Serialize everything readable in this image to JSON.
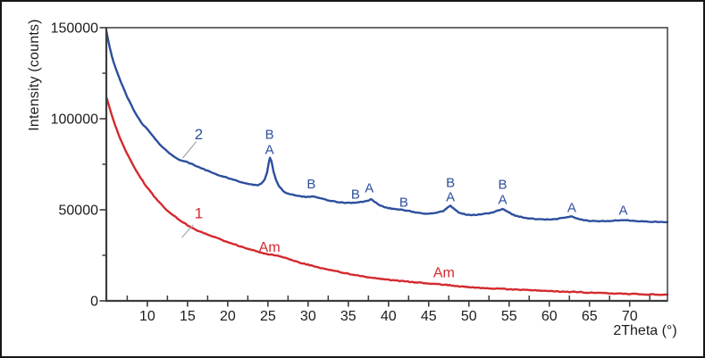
{
  "figure": {
    "description": "XRD diffractogram with two traces: trace 2 (blue, crystalline anatase A / brookite B peaks) and trace 1 (red, amorphous)",
    "background_color": "#ffffff",
    "border_color": "#161616",
    "frame_color": "#3c3c3c"
  },
  "chart_data": {
    "type": "line",
    "title": "",
    "xlabel": "2Theta (°)",
    "ylabel": "Intensity (counts)",
    "xlim": [
      4.9,
      74.7
    ],
    "ylim": [
      0,
      150000
    ],
    "grid": false,
    "legend": "none",
    "x_major_ticks": [
      10,
      15,
      20,
      25,
      30,
      35,
      40,
      45,
      50,
      55,
      60,
      65,
      70
    ],
    "x_minor_ticks": [
      7.5,
      12.5,
      17.5,
      22.5,
      27.5,
      32.5,
      37.5,
      42.5,
      47.5,
      52.5,
      57.5,
      62.5,
      67.5,
      72.5
    ],
    "y_major_ticks": [
      0,
      50000,
      100000,
      150000
    ],
    "y_minor_ticks": [
      25000,
      75000,
      125000
    ],
    "series": [
      {
        "name": "2",
        "color": "#2d4f9e",
        "points": [
          [
            4.93,
            147500
          ],
          [
            5.0,
            146000
          ],
          [
            5.3,
            139500
          ],
          [
            5.6,
            134000
          ],
          [
            6.0,
            128500
          ],
          [
            6.5,
            122500
          ],
          [
            7.0,
            117000
          ],
          [
            7.5,
            112000
          ],
          [
            8.0,
            107500
          ],
          [
            8.5,
            103300
          ],
          [
            9.0,
            99500
          ],
          [
            9.5,
            96500
          ],
          [
            10.0,
            94500
          ],
          [
            10.5,
            91500
          ],
          [
            11.0,
            88800
          ],
          [
            11.5,
            86300
          ],
          [
            12.0,
            84000
          ],
          [
            12.5,
            82000
          ],
          [
            13.0,
            80100
          ],
          [
            13.5,
            78600
          ],
          [
            14.0,
            77500
          ],
          [
            14.5,
            76800
          ],
          [
            15.0,
            76100
          ],
          [
            15.5,
            75200
          ],
          [
            16.0,
            74200
          ],
          [
            16.5,
            73200
          ],
          [
            17.0,
            72300
          ],
          [
            17.5,
            71400
          ],
          [
            18.0,
            70500
          ],
          [
            18.5,
            69700
          ],
          [
            19.0,
            68900
          ],
          [
            19.5,
            68200
          ],
          [
            20.0,
            67500
          ],
          [
            20.5,
            66800
          ],
          [
            21.0,
            66100
          ],
          [
            21.5,
            65500
          ],
          [
            22.0,
            64900
          ],
          [
            22.5,
            64400
          ],
          [
            23.0,
            63900
          ],
          [
            23.4,
            63600
          ],
          [
            23.8,
            63700
          ],
          [
            24.2,
            64500
          ],
          [
            24.6,
            66500
          ],
          [
            24.9,
            70500
          ],
          [
            25.1,
            75500
          ],
          [
            25.25,
            78500
          ],
          [
            25.45,
            76500
          ],
          [
            25.7,
            71000
          ],
          [
            26.0,
            66500
          ],
          [
            26.4,
            62800
          ],
          [
            26.9,
            60200
          ],
          [
            27.5,
            58800
          ],
          [
            28.2,
            58000
          ],
          [
            29.0,
            57400
          ],
          [
            29.7,
            57100
          ],
          [
            30.3,
            57100
          ],
          [
            30.8,
            57300
          ],
          [
            31.3,
            56600
          ],
          [
            32.0,
            55700
          ],
          [
            32.8,
            54900
          ],
          [
            33.6,
            54300
          ],
          [
            34.4,
            53900
          ],
          [
            35.2,
            53800
          ],
          [
            36.0,
            54100
          ],
          [
            36.6,
            54300
          ],
          [
            37.2,
            54700
          ],
          [
            37.8,
            55700
          ],
          [
            38.2,
            54600
          ],
          [
            38.8,
            52800
          ],
          [
            39.5,
            51500
          ],
          [
            40.2,
            50800
          ],
          [
            41.0,
            50200
          ],
          [
            41.8,
            50000
          ],
          [
            42.5,
            49400
          ],
          [
            43.3,
            48600
          ],
          [
            44.2,
            47900
          ],
          [
            45.0,
            47900
          ],
          [
            46.0,
            48300
          ],
          [
            46.8,
            49300
          ],
          [
            47.4,
            51200
          ],
          [
            47.7,
            52200
          ],
          [
            48.1,
            50600
          ],
          [
            48.7,
            48700
          ],
          [
            49.4,
            47600
          ],
          [
            50.2,
            47100
          ],
          [
            51.0,
            47200
          ],
          [
            52.0,
            47800
          ],
          [
            53.0,
            48700
          ],
          [
            53.8,
            49800
          ],
          [
            54.2,
            50400
          ],
          [
            54.7,
            49300
          ],
          [
            55.3,
            47700
          ],
          [
            56.0,
            46500
          ],
          [
            57.0,
            45700
          ],
          [
            58.0,
            45100
          ],
          [
            59.0,
            44800
          ],
          [
            60.0,
            44700
          ],
          [
            61.0,
            45000
          ],
          [
            61.8,
            45500
          ],
          [
            62.7,
            46300
          ],
          [
            63.4,
            45400
          ],
          [
            64.2,
            44400
          ],
          [
            65.0,
            43900
          ],
          [
            66.0,
            43700
          ],
          [
            67.0,
            43800
          ],
          [
            68.0,
            44000
          ],
          [
            68.8,
            44300
          ],
          [
            69.3,
            44400
          ],
          [
            70.0,
            44000
          ],
          [
            71.0,
            43700
          ],
          [
            72.0,
            43500
          ],
          [
            73.0,
            43400
          ],
          [
            74.0,
            43300
          ],
          [
            74.7,
            43300
          ]
        ]
      },
      {
        "name": "1",
        "color": "#d42a2e",
        "points": [
          [
            4.93,
            111500
          ],
          [
            5.0,
            110500
          ],
          [
            5.4,
            104500
          ],
          [
            5.8,
            99000
          ],
          [
            6.2,
            94000
          ],
          [
            6.6,
            89500
          ],
          [
            7.0,
            85300
          ],
          [
            7.4,
            81500
          ],
          [
            7.8,
            78000
          ],
          [
            8.2,
            74700
          ],
          [
            8.6,
            71600
          ],
          [
            9.0,
            68700
          ],
          [
            9.4,
            66000
          ],
          [
            9.8,
            63400
          ],
          [
            10.2,
            61000
          ],
          [
            10.6,
            58700
          ],
          [
            11.0,
            56500
          ],
          [
            11.5,
            54000
          ],
          [
            12.0,
            51700
          ],
          [
            12.5,
            49600
          ],
          [
            13.0,
            47700
          ],
          [
            13.5,
            46000
          ],
          [
            14.0,
            44400
          ],
          [
            14.5,
            43000
          ],
          [
            15.0,
            41500
          ],
          [
            15.5,
            40300
          ],
          [
            16.0,
            39200
          ],
          [
            16.5,
            38200
          ],
          [
            17.0,
            37300
          ],
          [
            17.5,
            36400
          ],
          [
            18.0,
            35500
          ],
          [
            18.5,
            34700
          ],
          [
            19.0,
            33900
          ],
          [
            19.5,
            33100
          ],
          [
            20.0,
            32300
          ],
          [
            20.5,
            31500
          ],
          [
            21.0,
            30800
          ],
          [
            21.5,
            30100
          ],
          [
            22.0,
            29400
          ],
          [
            22.5,
            28700
          ],
          [
            23.0,
            28000
          ],
          [
            23.5,
            27400
          ],
          [
            24.0,
            26800
          ],
          [
            24.5,
            26200
          ],
          [
            25.0,
            25700
          ],
          [
            25.5,
            25300
          ],
          [
            26.0,
            24900
          ],
          [
            26.5,
            24400
          ],
          [
            27.0,
            23800
          ],
          [
            27.5,
            23100
          ],
          [
            28.0,
            22400
          ],
          [
            28.5,
            21700
          ],
          [
            29.0,
            21000
          ],
          [
            29.5,
            20400
          ],
          [
            30.0,
            19800
          ],
          [
            30.8,
            18900
          ],
          [
            31.6,
            18100
          ],
          [
            32.4,
            17300
          ],
          [
            33.2,
            16500
          ],
          [
            34.0,
            15800
          ],
          [
            34.8,
            15100
          ],
          [
            35.6,
            14400
          ],
          [
            36.4,
            13800
          ],
          [
            37.2,
            13200
          ],
          [
            38.0,
            12700
          ],
          [
            38.8,
            12200
          ],
          [
            39.6,
            11800
          ],
          [
            40.4,
            11400
          ],
          [
            41.2,
            11000
          ],
          [
            42.0,
            10700
          ],
          [
            42.8,
            10400
          ],
          [
            43.6,
            10100
          ],
          [
            44.4,
            9800
          ],
          [
            45.2,
            9500
          ],
          [
            46.0,
            9200
          ],
          [
            46.8,
            8900
          ],
          [
            47.6,
            8600
          ],
          [
            48.4,
            8200
          ],
          [
            49.2,
            7800
          ],
          [
            50.0,
            7500
          ],
          [
            51.0,
            7200
          ],
          [
            52.0,
            7000
          ],
          [
            53.0,
            6800
          ],
          [
            54.0,
            6600
          ],
          [
            55.0,
            6400
          ],
          [
            56.0,
            6200
          ],
          [
            57.0,
            6000
          ],
          [
            58.0,
            5800
          ],
          [
            59.0,
            5600
          ],
          [
            60.0,
            5400
          ],
          [
            61.0,
            5200
          ],
          [
            62.0,
            5000
          ],
          [
            63.0,
            4900
          ],
          [
            64.0,
            4700
          ],
          [
            65.0,
            4500
          ],
          [
            66.0,
            4400
          ],
          [
            67.0,
            4200
          ],
          [
            68.0,
            4100
          ],
          [
            69.0,
            3900
          ],
          [
            70.0,
            3800
          ],
          [
            71.0,
            3700
          ],
          [
            72.0,
            3600
          ],
          [
            73.0,
            3500
          ],
          [
            74.0,
            3400
          ],
          [
            74.7,
            3400
          ]
        ]
      }
    ],
    "annotations": [
      {
        "text": "B",
        "x": 25.2,
        "y": 91700,
        "color": "#2d4f9e",
        "kind": "phase"
      },
      {
        "text": "A",
        "x": 25.2,
        "y": 83300,
        "color": "#2d4f9e",
        "kind": "phase"
      },
      {
        "text": "B",
        "x": 30.4,
        "y": 64400,
        "color": "#2d4f9e",
        "kind": "phase"
      },
      {
        "text": "B",
        "x": 35.9,
        "y": 58800,
        "color": "#2d4f9e",
        "kind": "phase"
      },
      {
        "text": "A",
        "x": 37.6,
        "y": 62300,
        "color": "#2d4f9e",
        "kind": "phase"
      },
      {
        "text": "B",
        "x": 41.9,
        "y": 54400,
        "color": "#2d4f9e",
        "kind": "phase"
      },
      {
        "text": "B",
        "x": 47.7,
        "y": 65200,
        "color": "#2d4f9e",
        "kind": "phase"
      },
      {
        "text": "A",
        "x": 47.7,
        "y": 57400,
        "color": "#2d4f9e",
        "kind": "phase"
      },
      {
        "text": "B",
        "x": 54.2,
        "y": 64200,
        "color": "#2d4f9e",
        "kind": "phase"
      },
      {
        "text": "A",
        "x": 54.2,
        "y": 55900,
        "color": "#2d4f9e",
        "kind": "phase"
      },
      {
        "text": "A",
        "x": 62.8,
        "y": 51500,
        "color": "#2d4f9e",
        "kind": "phase"
      },
      {
        "text": "A",
        "x": 69.2,
        "y": 50000,
        "color": "#2d4f9e",
        "kind": "phase"
      },
      {
        "text": "Am",
        "x": 25.2,
        "y": 29900,
        "color": "#d42a2e",
        "kind": "amorphous"
      },
      {
        "text": "Am",
        "x": 46.9,
        "y": 15700,
        "color": "#d42a2e",
        "kind": "amorphous"
      }
    ],
    "curve_labels": [
      {
        "text": "2",
        "x": 16.4,
        "y": 91700,
        "color": "#2d4f9e",
        "leader": {
          "x1": 16.1,
          "y1": 87500,
          "x2": 14.4,
          "y2": 78400
        }
      },
      {
        "text": "1",
        "x": 16.4,
        "y": 48300,
        "color": "#d42a2e",
        "leader": {
          "x1": 15.7,
          "y1": 41700,
          "x2": 14.3,
          "y2": 34800
        }
      }
    ]
  }
}
